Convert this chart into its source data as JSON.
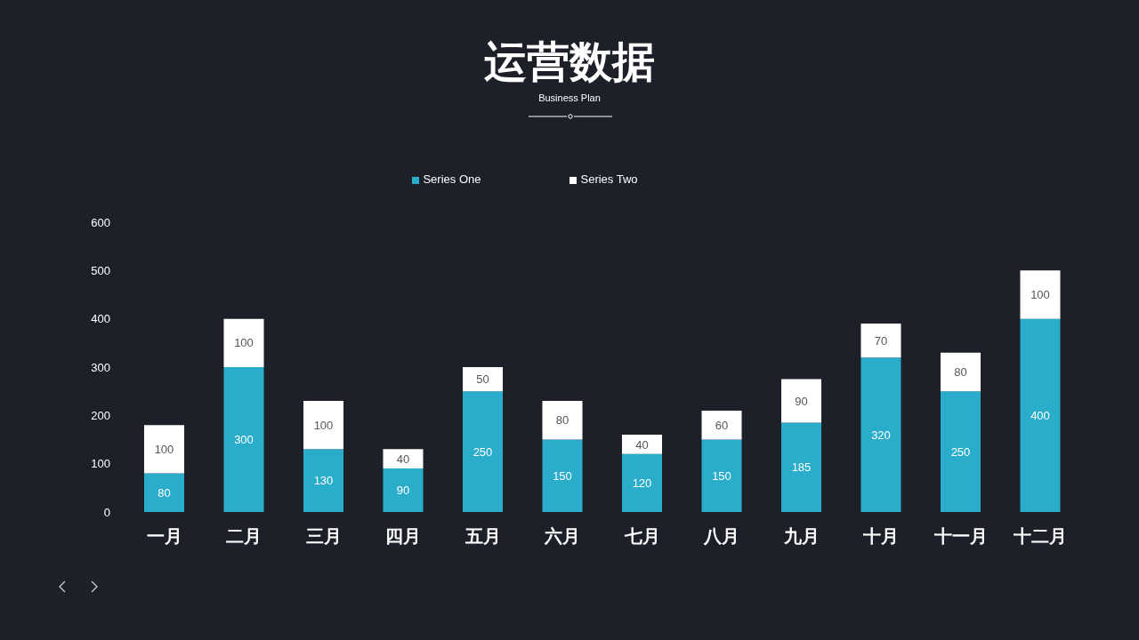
{
  "chart_data": {
    "type": "bar",
    "title": "运营数据",
    "subtitle": "Business Plan",
    "categories": [
      "一月",
      "二月",
      "三月",
      "四月",
      "五月",
      "六月",
      "七月",
      "八月",
      "九月",
      "十月",
      "十一月",
      "十二月"
    ],
    "stacked": true,
    "series": [
      {
        "name": "Series One",
        "color": "#2aaccb",
        "values": [
          80,
          300,
          130,
          90,
          250,
          150,
          120,
          150,
          185,
          320,
          250,
          400
        ]
      },
      {
        "name": "Series Two",
        "color": "#ffffff",
        "values": [
          100,
          100,
          100,
          40,
          50,
          80,
          40,
          60,
          90,
          70,
          80,
          100
        ]
      }
    ],
    "ylim": [
      0,
      600
    ],
    "yticks": [
      0,
      100,
      200,
      300,
      400,
      500,
      600
    ],
    "grid": false,
    "legend": "top",
    "data_labels": true
  }
}
